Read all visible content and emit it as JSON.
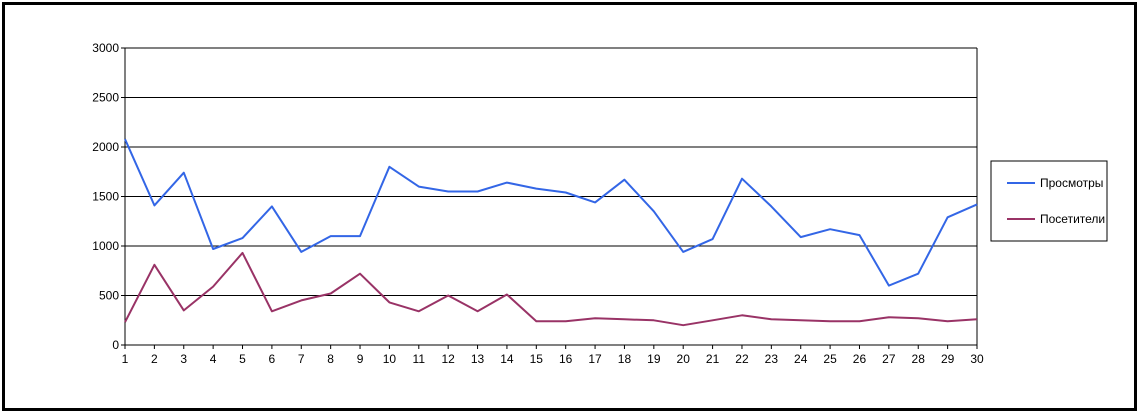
{
  "chart_data": {
    "type": "line",
    "title": "",
    "xlabel": "",
    "ylabel": "",
    "x": [
      1,
      2,
      3,
      4,
      5,
      6,
      7,
      8,
      9,
      10,
      11,
      12,
      13,
      14,
      15,
      16,
      17,
      18,
      19,
      20,
      21,
      22,
      23,
      24,
      25,
      26,
      27,
      28,
      29,
      30
    ],
    "x_tick_labels": [
      "1",
      "2",
      "3",
      "4",
      "5",
      "6",
      "7",
      "8",
      "9",
      "10",
      "11",
      "12",
      "13",
      "14",
      "15",
      "16",
      "17",
      "18",
      "19",
      "20",
      "21",
      "22",
      "23",
      "24",
      "25",
      "26",
      "27",
      "28",
      "29",
      "30"
    ],
    "ylim": [
      0,
      3000
    ],
    "y_ticks": [
      0,
      500,
      1000,
      1500,
      2000,
      2500,
      3000
    ],
    "y_tick_labels": [
      "0",
      "500",
      "1000",
      "1500",
      "2000",
      "2500",
      "3000"
    ],
    "grid": "horizontal",
    "legend_position": "right",
    "series": [
      {
        "name": "Просмотры",
        "color": "#3366e6",
        "values": [
          2080,
          1410,
          1740,
          970,
          1080,
          1400,
          940,
          1100,
          1100,
          1800,
          1600,
          1550,
          1550,
          1640,
          1580,
          1540,
          1440,
          1670,
          1350,
          940,
          1070,
          1680,
          1400,
          1090,
          1170,
          1110,
          600,
          720,
          1290,
          1420
        ]
      },
      {
        "name": "Посетители",
        "color": "#993366",
        "values": [
          230,
          810,
          350,
          590,
          930,
          340,
          450,
          520,
          720,
          430,
          340,
          500,
          340,
          510,
          240,
          240,
          270,
          260,
          250,
          200,
          250,
          300,
          260,
          250,
          240,
          240,
          280,
          270,
          240,
          260
        ]
      }
    ]
  }
}
